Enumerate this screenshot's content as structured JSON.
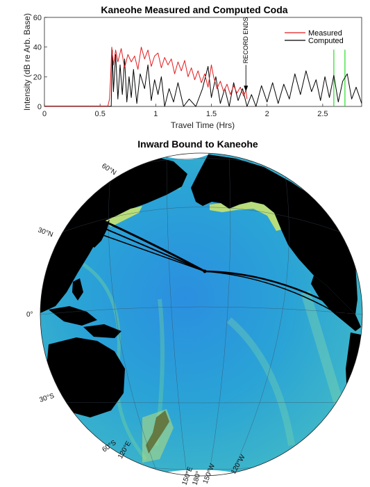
{
  "chart_data": [
    {
      "type": "line",
      "title": "Kaneohe Measured and Computed Coda",
      "xlabel": "Travel Time (Hrs)",
      "ylabel": "Intensity (dB re Arb. Base)",
      "xlim": [
        0,
        2.85
      ],
      "ylim": [
        0,
        60
      ],
      "xticks": [
        "0",
        "0.5",
        "1",
        "1.5",
        "2",
        "2.5"
      ],
      "yticks": [
        "0",
        "20",
        "40",
        "60"
      ],
      "legend_position": "top-right",
      "annotation": "RECORD ENDS",
      "annotation_x": 1.81,
      "series": [
        {
          "name": "Measured",
          "color": "#e31a1c",
          "points": [
            [
              0,
              0.3
            ],
            [
              0.57,
              0.3
            ],
            [
              0.585,
              5
            ],
            [
              0.595,
              20
            ],
            [
              0.605,
              40
            ],
            [
              0.62,
              28
            ],
            [
              0.64,
              38
            ],
            [
              0.66,
              30
            ],
            [
              0.69,
              39
            ],
            [
              0.72,
              26
            ],
            [
              0.75,
              35
            ],
            [
              0.78,
              30
            ],
            [
              0.81,
              34
            ],
            [
              0.84,
              25
            ],
            [
              0.87,
              40
            ],
            [
              0.9,
              32
            ],
            [
              0.93,
              38
            ],
            [
              0.96,
              27
            ],
            [
              0.99,
              34
            ],
            [
              1.02,
              36
            ],
            [
              1.05,
              26
            ],
            [
              1.08,
              33
            ],
            [
              1.11,
              28
            ],
            [
              1.14,
              32
            ],
            [
              1.17,
              22
            ],
            [
              1.2,
              30
            ],
            [
              1.23,
              24
            ],
            [
              1.26,
              31
            ],
            [
              1.29,
              20
            ],
            [
              1.32,
              26
            ],
            [
              1.35,
              18
            ],
            [
              1.38,
              24
            ],
            [
              1.41,
              16
            ],
            [
              1.44,
              22
            ],
            [
              1.47,
              13
            ],
            [
              1.5,
              28
            ],
            [
              1.52,
              20
            ],
            [
              1.55,
              12
            ],
            [
              1.58,
              17
            ],
            [
              1.61,
              10
            ],
            [
              1.64,
              15
            ],
            [
              1.67,
              8
            ],
            [
              1.7,
              14
            ],
            [
              1.73,
              9
            ],
            [
              1.76,
              13
            ],
            [
              1.79,
              7
            ],
            [
              1.81,
              11
            ],
            [
              1.82,
              5
            ]
          ]
        },
        {
          "name": "Computed",
          "color": "#000000",
          "points": [
            [
              0,
              0.1
            ],
            [
              0.6,
              0.1
            ],
            [
              0.61,
              38
            ],
            [
              0.62,
              10
            ],
            [
              0.64,
              35
            ],
            [
              0.66,
              5
            ],
            [
              0.68,
              28
            ],
            [
              0.7,
              8
            ],
            [
              0.72,
              32
            ],
            [
              0.74,
              3
            ],
            [
              0.76,
              20
            ],
            [
              0.78,
              6
            ],
            [
              0.8,
              25
            ],
            [
              0.83,
              2
            ],
            [
              0.86,
              22
            ],
            [
              0.9,
              12
            ],
            [
              0.93,
              28
            ],
            [
              0.96,
              4
            ],
            [
              0.99,
              18
            ],
            [
              1.02,
              8
            ],
            [
              1.05,
              20
            ],
            [
              1.08,
              0
            ],
            [
              1.12,
              12
            ],
            [
              1.16,
              3
            ],
            [
              1.2,
              16
            ],
            [
              1.25,
              0
            ],
            [
              1.3,
              5
            ],
            [
              1.36,
              0
            ],
            [
              1.42,
              12
            ],
            [
              1.47,
              27
            ],
            [
              1.5,
              6
            ],
            [
              1.54,
              20
            ],
            [
              1.58,
              2
            ],
            [
              1.62,
              12
            ],
            [
              1.66,
              0
            ],
            [
              1.7,
              16
            ],
            [
              1.74,
              4
            ],
            [
              1.78,
              12
            ],
            [
              1.82,
              0
            ],
            [
              1.86,
              8
            ],
            [
              1.9,
              0
            ],
            [
              1.95,
              14
            ],
            [
              2.0,
              3
            ],
            [
              2.05,
              16
            ],
            [
              2.1,
              2
            ],
            [
              2.15,
              15
            ],
            [
              2.2,
              5
            ],
            [
              2.25,
              22
            ],
            [
              2.3,
              8
            ],
            [
              2.35,
              24
            ],
            [
              2.4,
              10
            ],
            [
              2.44,
              18
            ],
            [
              2.48,
              4
            ],
            [
              2.52,
              20
            ],
            [
              2.56,
              6
            ],
            [
              2.6,
              21
            ],
            [
              2.64,
              3
            ],
            [
              2.68,
              17
            ],
            [
              2.72,
              22
            ],
            [
              2.76,
              5
            ],
            [
              2.8,
              13
            ],
            [
              2.85,
              2
            ]
          ]
        },
        {
          "color": "#22dd22",
          "points": [
            [
              2.6,
              0
            ],
            [
              2.6,
              38
            ],
            [
              2.6,
              0
            ]
          ]
        },
        {
          "color": "#22dd22",
          "points": [
            [
              2.7,
              0
            ],
            [
              2.7,
              38
            ],
            [
              2.7,
              0
            ]
          ]
        }
      ]
    },
    {
      "type": "map",
      "title": "Inward Bound to Kaneohe",
      "latitude_labels": [
        "60°N",
        "30°N",
        "0°",
        "30°S",
        "60°S"
      ],
      "longitude_labels": [
        "120°E",
        "150°E",
        "180°",
        "150°W",
        "120°W"
      ],
      "colors": {
        "ocean_deep": "#1f6fd6",
        "ocean_mid": "#2fa8d8",
        "ocean_shallow": "#6fd0a0",
        "shelf": "#b8dd7a",
        "land": "#000000",
        "ice": "#ffffff"
      }
    }
  ]
}
